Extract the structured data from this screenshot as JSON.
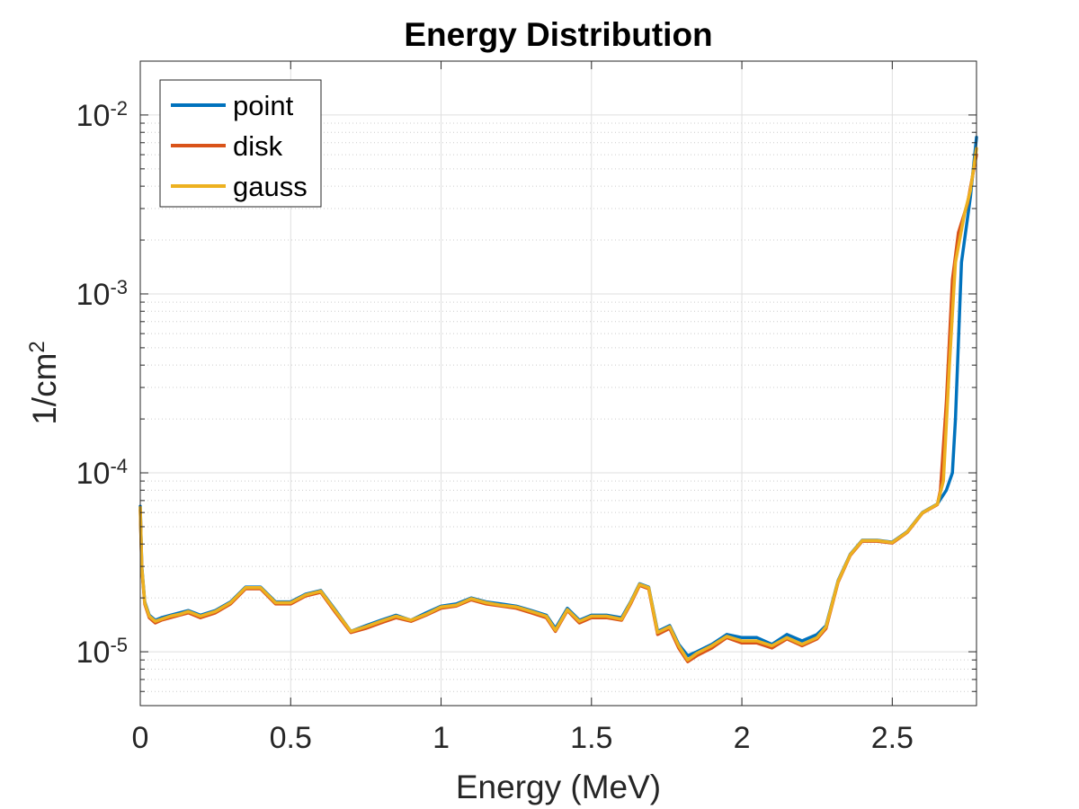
{
  "chart_data": {
    "type": "line",
    "title": "Energy Distribution",
    "xlabel": "Energy (MeV)",
    "ylabel_base": "1/cm",
    "ylabel_sup": "2",
    "xlim": [
      0,
      2.78
    ],
    "ylim": [
      5e-06,
      0.02
    ],
    "yscale": "log",
    "grid": true,
    "legend_position": "top-left",
    "xticks": [
      {
        "value": 0,
        "label": "0"
      },
      {
        "value": 0.5,
        "label": "0.5"
      },
      {
        "value": 1,
        "label": "1"
      },
      {
        "value": 1.5,
        "label": "1.5"
      },
      {
        "value": 2,
        "label": "2"
      },
      {
        "value": 2.5,
        "label": "2.5"
      }
    ],
    "yticks": [
      {
        "value": 1e-05,
        "base": "10",
        "exp": "-5"
      },
      {
        "value": 0.0001,
        "base": "10",
        "exp": "-4"
      },
      {
        "value": 0.001,
        "base": "10",
        "exp": "-3"
      },
      {
        "value": 0.01,
        "base": "10",
        "exp": "-2"
      }
    ],
    "series": [
      {
        "name": "point",
        "color": "#0072BD",
        "x": [
          0,
          0.005,
          0.015,
          0.03,
          0.05,
          0.07,
          0.1,
          0.13,
          0.16,
          0.2,
          0.25,
          0.3,
          0.35,
          0.4,
          0.45,
          0.5,
          0.55,
          0.6,
          0.65,
          0.7,
          0.75,
          0.8,
          0.85,
          0.9,
          0.95,
          1.0,
          1.05,
          1.1,
          1.15,
          1.2,
          1.25,
          1.3,
          1.35,
          1.38,
          1.42,
          1.46,
          1.5,
          1.55,
          1.6,
          1.63,
          1.66,
          1.69,
          1.72,
          1.76,
          1.79,
          1.82,
          1.85,
          1.9,
          1.95,
          2.0,
          2.05,
          2.1,
          2.15,
          2.2,
          2.25,
          2.28,
          2.32,
          2.36,
          2.4,
          2.45,
          2.5,
          2.55,
          2.6,
          2.65,
          2.68,
          2.7,
          2.71,
          2.73,
          2.76,
          2.78
        ],
        "y": [
          6.5e-05,
          3e-05,
          1.9e-05,
          1.6e-05,
          1.5e-05,
          1.55e-05,
          1.6e-05,
          1.65e-05,
          1.7e-05,
          1.6e-05,
          1.7e-05,
          1.9e-05,
          2.3e-05,
          2.3e-05,
          1.9e-05,
          1.9e-05,
          2.1e-05,
          2.2e-05,
          1.7e-05,
          1.3e-05,
          1.4e-05,
          1.5e-05,
          1.6e-05,
          1.5e-05,
          1.65e-05,
          1.8e-05,
          1.85e-05,
          2e-05,
          1.9e-05,
          1.85e-05,
          1.8e-05,
          1.7e-05,
          1.6e-05,
          1.35e-05,
          1.75e-05,
          1.5e-05,
          1.6e-05,
          1.6e-05,
          1.55e-05,
          1.9e-05,
          2.4e-05,
          2.3e-05,
          1.3e-05,
          1.4e-05,
          1.1e-05,
          9.5e-06,
          1e-05,
          1.1e-05,
          1.25e-05,
          1.2e-05,
          1.2e-05,
          1.1e-05,
          1.25e-05,
          1.15e-05,
          1.25e-05,
          1.4e-05,
          2.5e-05,
          3.5e-05,
          4.2e-05,
          4.2e-05,
          4.1e-05,
          4.7e-05,
          6e-05,
          6.7e-05,
          8e-05,
          0.0001,
          0.0002,
          0.0015,
          0.0035,
          0.0075
        ]
      },
      {
        "name": "disk",
        "color": "#D95319",
        "x": [
          0,
          0.005,
          0.015,
          0.03,
          0.05,
          0.07,
          0.1,
          0.13,
          0.16,
          0.2,
          0.25,
          0.3,
          0.35,
          0.4,
          0.45,
          0.5,
          0.55,
          0.6,
          0.65,
          0.7,
          0.75,
          0.8,
          0.85,
          0.9,
          0.95,
          1.0,
          1.05,
          1.1,
          1.15,
          1.2,
          1.25,
          1.3,
          1.35,
          1.38,
          1.42,
          1.46,
          1.5,
          1.55,
          1.6,
          1.63,
          1.66,
          1.69,
          1.72,
          1.76,
          1.79,
          1.82,
          1.85,
          1.9,
          1.95,
          2.0,
          2.05,
          2.1,
          2.15,
          2.2,
          2.25,
          2.28,
          2.32,
          2.36,
          2.4,
          2.45,
          2.5,
          2.55,
          2.6,
          2.65,
          2.66,
          2.68,
          2.7,
          2.72,
          2.75,
          2.78
        ],
        "y": [
          6.2e-05,
          2.9e-05,
          1.85e-05,
          1.55e-05,
          1.45e-05,
          1.5e-05,
          1.55e-05,
          1.6e-05,
          1.65e-05,
          1.55e-05,
          1.65e-05,
          1.85e-05,
          2.25e-05,
          2.25e-05,
          1.85e-05,
          1.85e-05,
          2.05e-05,
          2.15e-05,
          1.65e-05,
          1.28e-05,
          1.35e-05,
          1.45e-05,
          1.55e-05,
          1.48e-05,
          1.6e-05,
          1.75e-05,
          1.8e-05,
          1.95e-05,
          1.85e-05,
          1.8e-05,
          1.75e-05,
          1.65e-05,
          1.55e-05,
          1.3e-05,
          1.7e-05,
          1.45e-05,
          1.55e-05,
          1.55e-05,
          1.5e-05,
          1.85e-05,
          2.35e-05,
          2.25e-05,
          1.25e-05,
          1.35e-05,
          1.05e-05,
          8.8e-06,
          9.5e-06,
          1.05e-05,
          1.2e-05,
          1.12e-05,
          1.12e-05,
          1.05e-05,
          1.18e-05,
          1.08e-05,
          1.18e-05,
          1.35e-05,
          2.45e-05,
          3.45e-05,
          4.15e-05,
          4.15e-05,
          4.05e-05,
          4.65e-05,
          5.95e-05,
          6.65e-05,
          8e-05,
          0.00025,
          0.0012,
          0.0022,
          0.0032,
          0.006
        ]
      },
      {
        "name": "gauss",
        "color": "#EDB120",
        "x": [
          0,
          0.005,
          0.015,
          0.03,
          0.05,
          0.07,
          0.1,
          0.13,
          0.16,
          0.2,
          0.25,
          0.3,
          0.35,
          0.4,
          0.45,
          0.5,
          0.55,
          0.6,
          0.65,
          0.7,
          0.75,
          0.8,
          0.85,
          0.9,
          0.95,
          1.0,
          1.05,
          1.1,
          1.15,
          1.2,
          1.25,
          1.3,
          1.35,
          1.38,
          1.42,
          1.46,
          1.5,
          1.55,
          1.6,
          1.63,
          1.66,
          1.69,
          1.72,
          1.76,
          1.79,
          1.82,
          1.85,
          1.9,
          1.95,
          2.0,
          2.05,
          2.1,
          2.15,
          2.2,
          2.25,
          2.28,
          2.32,
          2.36,
          2.4,
          2.45,
          2.5,
          2.55,
          2.6,
          2.65,
          2.67,
          2.69,
          2.71,
          2.74,
          2.76,
          2.78
        ],
        "y": [
          6.4e-05,
          2.95e-05,
          1.88e-05,
          1.58e-05,
          1.48e-05,
          1.52e-05,
          1.58e-05,
          1.62e-05,
          1.68e-05,
          1.58e-05,
          1.68e-05,
          1.88e-05,
          2.28e-05,
          2.28e-05,
          1.88e-05,
          1.88e-05,
          2.08e-05,
          2.18e-05,
          1.68e-05,
          1.3e-05,
          1.38e-05,
          1.48e-05,
          1.58e-05,
          1.5e-05,
          1.62e-05,
          1.78e-05,
          1.82e-05,
          1.98e-05,
          1.88e-05,
          1.82e-05,
          1.78e-05,
          1.68e-05,
          1.58e-05,
          1.32e-05,
          1.72e-05,
          1.48e-05,
          1.58e-05,
          1.58e-05,
          1.52e-05,
          1.88e-05,
          2.38e-05,
          2.28e-05,
          1.28e-05,
          1.38e-05,
          1.08e-05,
          9e-06,
          9.8e-06,
          1.08e-05,
          1.22e-05,
          1.15e-05,
          1.15e-05,
          1.08e-05,
          1.2e-05,
          1.1e-05,
          1.2e-05,
          1.38e-05,
          2.48e-05,
          3.48e-05,
          4.18e-05,
          4.18e-05,
          4.08e-05,
          4.68e-05,
          5.98e-05,
          6.68e-05,
          9e-05,
          0.0004,
          0.0015,
          0.0028,
          0.0038,
          0.0065
        ]
      }
    ]
  }
}
